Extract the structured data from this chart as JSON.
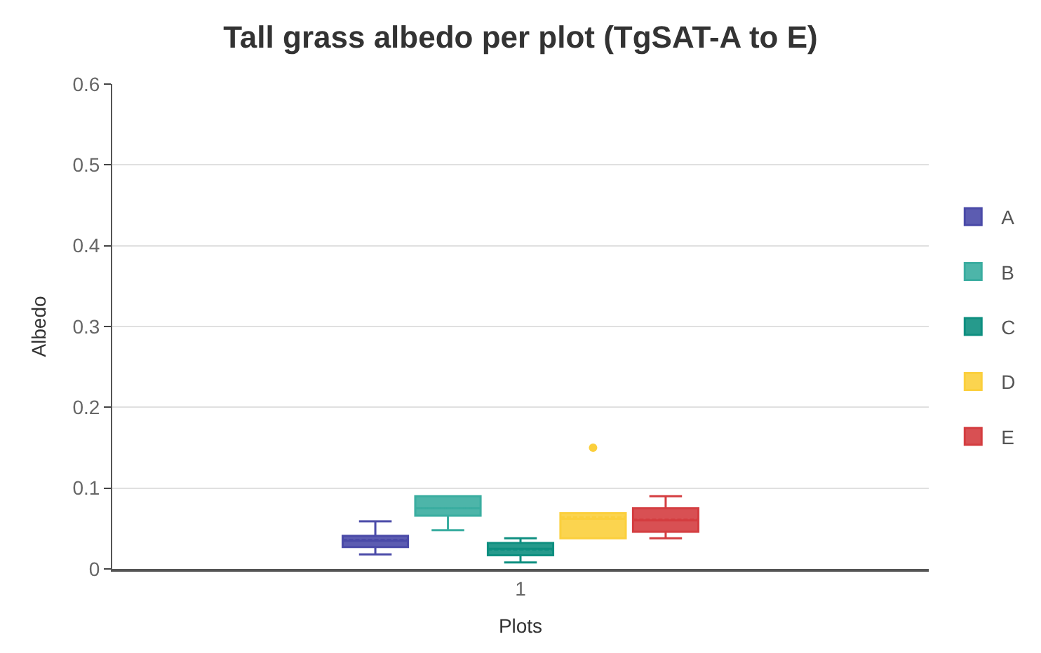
{
  "chart_data": {
    "type": "box",
    "title": "Tall grass albedo per plot (TgSAT-A to E)",
    "xlabel": "Plots",
    "ylabel": "Albedo",
    "categories": [
      "1"
    ],
    "ylim": [
      0,
      0.6
    ],
    "yticks": [
      0,
      0.1,
      0.2,
      0.3,
      0.4,
      0.5,
      0.6
    ],
    "grid": "y",
    "legend": "right",
    "series": [
      {
        "name": "A",
        "color": "#4a4aa8",
        "boxes": [
          {
            "low": 0.018,
            "q1": 0.027,
            "median": 0.035,
            "q3": 0.041,
            "high": 0.059,
            "mean": 0.036
          }
        ]
      },
      {
        "name": "B",
        "color": "#3aada0",
        "boxes": [
          {
            "low": 0.048,
            "q1": 0.066,
            "median": 0.075,
            "q3": 0.09,
            "high": 0.09,
            "mean": 0.075
          }
        ]
      },
      {
        "name": "C",
        "color": "#0e8f80",
        "boxes": [
          {
            "low": 0.008,
            "q1": 0.017,
            "median": 0.025,
            "q3": 0.032,
            "high": 0.038,
            "mean": 0.024
          }
        ]
      },
      {
        "name": "D",
        "color": "#fbcf3c",
        "boxes": [
          {
            "low": 0.038,
            "q1": 0.038,
            "median": 0.062,
            "q3": 0.069,
            "high": 0.069,
            "mean": 0.064,
            "outliers": [
              0.15
            ]
          }
        ]
      },
      {
        "name": "E",
        "color": "#d43d40",
        "boxes": [
          {
            "low": 0.038,
            "q1": 0.046,
            "median": 0.06,
            "q3": 0.075,
            "high": 0.09,
            "mean": 0.061
          }
        ]
      }
    ]
  }
}
